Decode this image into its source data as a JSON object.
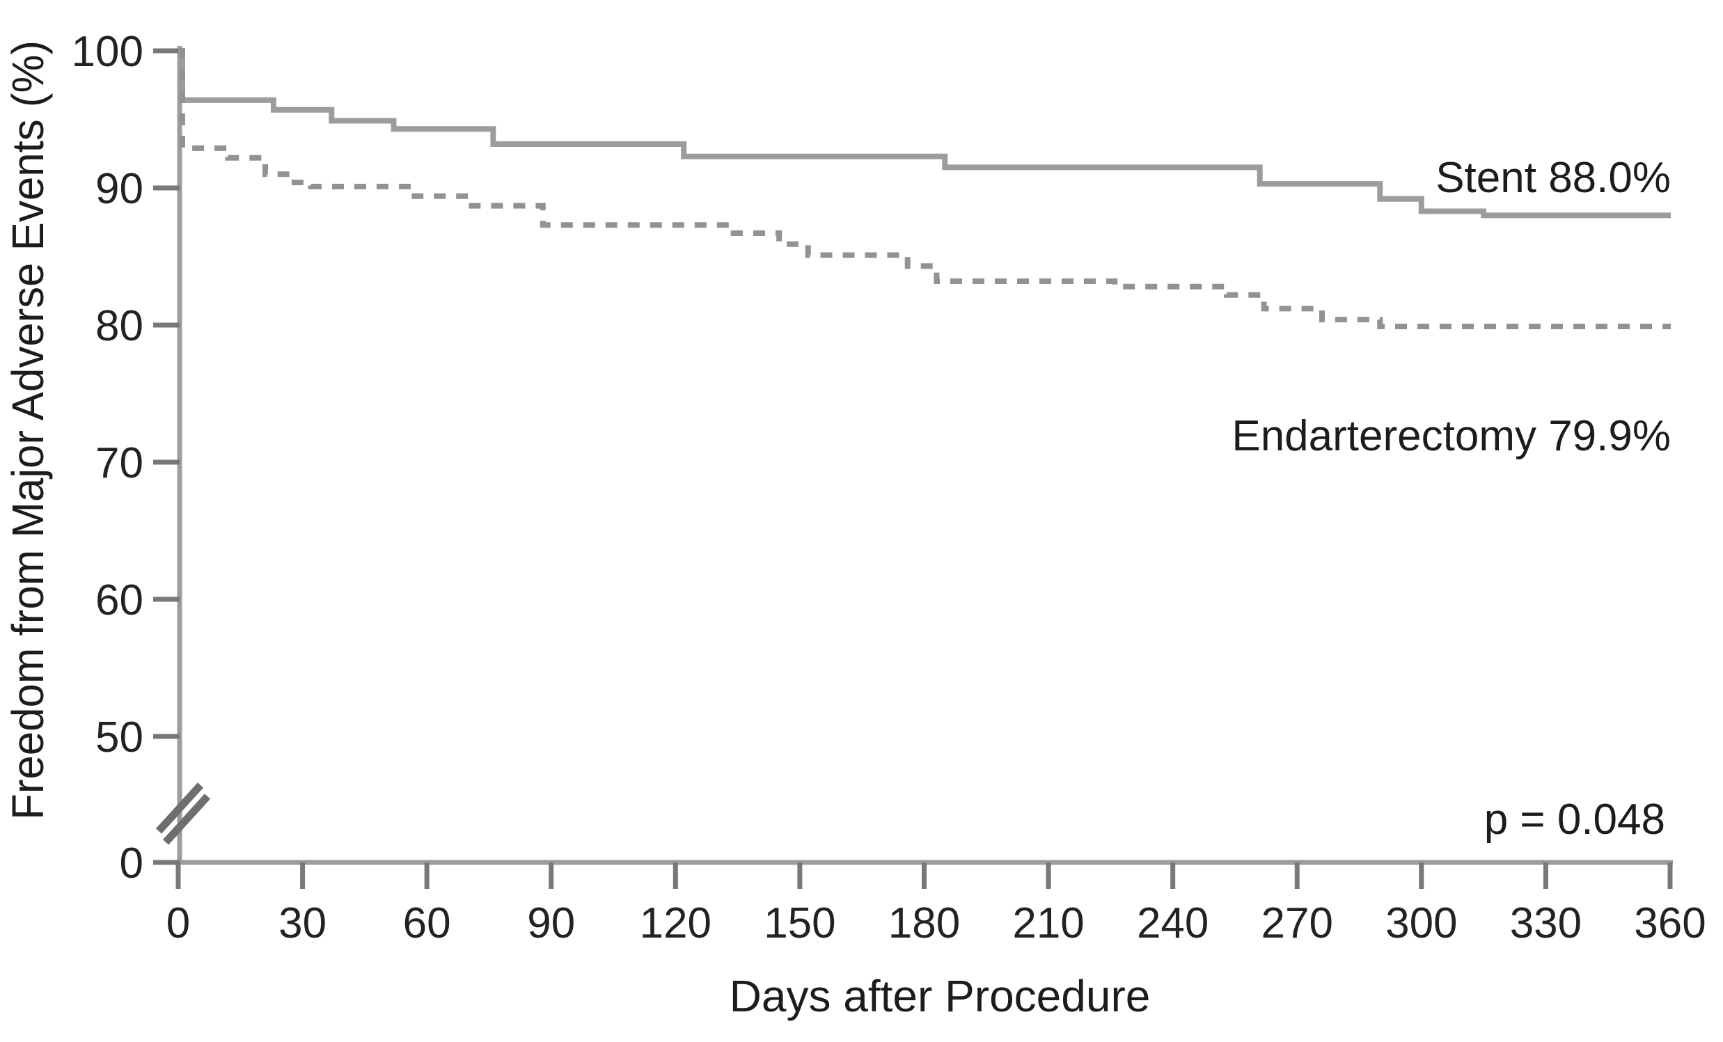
{
  "chart_data": {
    "type": "line",
    "subtype": "kaplan-meier-step",
    "title": "",
    "xlabel": "Days after Procedure",
    "ylabel": "Freedom from Major Adverse Events (%)",
    "x_ticks": [
      0,
      30,
      60,
      90,
      120,
      150,
      180,
      210,
      240,
      270,
      300,
      330,
      360
    ],
    "y_ticks": [
      100,
      90,
      80,
      70,
      60,
      50,
      0
    ],
    "y_axis_break_between": [
      50,
      0
    ],
    "xlim": [
      0,
      360
    ],
    "ylim_visible": [
      50,
      100
    ],
    "grid": false,
    "legend": "inline-annotations",
    "p_value_text": "p = 0.048",
    "series": [
      {
        "name": "Stent",
        "annotation": "Stent 88.0%",
        "final_value": 88.0,
        "line_style": "solid",
        "color": "#9c9c9c",
        "points": [
          [
            0,
            100
          ],
          [
            1,
            96.4
          ],
          [
            23,
            95.7
          ],
          [
            37,
            94.9
          ],
          [
            52,
            94.3
          ],
          [
            76,
            93.2
          ],
          [
            122,
            92.3
          ],
          [
            185,
            91.5
          ],
          [
            261,
            90.3
          ],
          [
            290,
            89.2
          ],
          [
            300,
            88.3
          ],
          [
            315,
            88.0
          ],
          [
            360,
            88.0
          ]
        ]
      },
      {
        "name": "Endarterectomy",
        "annotation": "Endarterectomy 79.9%",
        "final_value": 79.9,
        "line_style": "dashed",
        "color": "#929292",
        "points": [
          [
            0,
            100
          ],
          [
            1,
            92.9
          ],
          [
            12,
            92.2
          ],
          [
            21,
            91.0
          ],
          [
            27,
            90.4
          ],
          [
            32,
            90.1
          ],
          [
            57,
            89.4
          ],
          [
            70,
            88.7
          ],
          [
            88,
            87.3
          ],
          [
            134,
            86.7
          ],
          [
            145,
            85.9
          ],
          [
            152,
            85.1
          ],
          [
            176,
            84.3
          ],
          [
            183,
            83.2
          ],
          [
            226,
            82.8
          ],
          [
            253,
            82.2
          ],
          [
            262,
            81.2
          ],
          [
            276,
            80.4
          ],
          [
            290,
            79.9
          ],
          [
            360,
            79.9
          ]
        ]
      }
    ]
  },
  "annotations": {
    "stent": "Stent 88.0%",
    "endarterectomy": "Endarterectomy 79.9%",
    "p_value": "p = 0.048"
  }
}
